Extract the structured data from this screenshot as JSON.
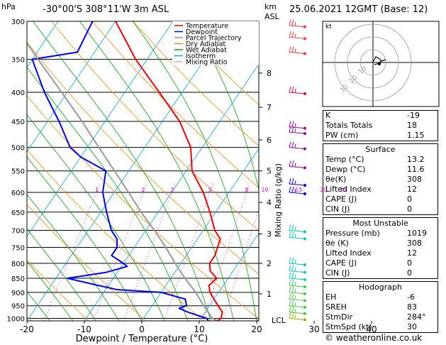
{
  "header": {
    "hpa_label": "hPa",
    "location": "-30°00'S 308°11'W 3m ASL",
    "km_label": "km",
    "asl_label": "ASL",
    "datetime": "25.06.2021 12GMT (Base: 12)"
  },
  "legend": [
    {
      "label": "Temperature",
      "color": "#ff0000"
    },
    {
      "label": "Dewpoint",
      "color": "#0000ff"
    },
    {
      "label": "Parcel Trajectory",
      "color": "#999999"
    },
    {
      "label": "Dry Adiabat",
      "color": "#ff8c00"
    },
    {
      "label": "Wet Adiabat",
      "color": "#00aa00"
    },
    {
      "label": "Isotherm",
      "color": "#00aaff"
    },
    {
      "label": "Mixing Ratio",
      "color": "#ff00ff"
    }
  ],
  "chart_data": {
    "type": "line",
    "xlabel": "Dewpoint / Temperature (°C)",
    "ylabel_right": "Mixing Ratio (g/kg)",
    "x_ticks": [
      -30,
      -20,
      -10,
      0,
      10,
      20,
      30,
      40
    ],
    "p_ticks": [
      300,
      350,
      400,
      450,
      500,
      550,
      600,
      650,
      700,
      750,
      800,
      850,
      900,
      950,
      1000
    ],
    "km_ticks": [
      {
        "km": "1",
        "p": 905
      },
      {
        "km": "2",
        "p": 800
      },
      {
        "km": "3",
        "p": 710
      },
      {
        "km": "4",
        "p": 625
      },
      {
        "km": "5",
        "p": 550
      },
      {
        "km": "6",
        "p": 485
      },
      {
        "km": "7",
        "p": 425
      },
      {
        "km": "8",
        "p": 370
      }
    ],
    "lcl_label": "LCL",
    "mixing_ratio_labels": [
      "1",
      "2",
      "3",
      "5",
      "8",
      "10",
      "15",
      "20",
      "25"
    ],
    "series": [
      {
        "name": "Temperature",
        "points": [
          [
            1010,
            13.2
          ],
          [
            1000,
            13.5
          ],
          [
            975,
            13
          ],
          [
            950,
            11.5
          ],
          [
            925,
            10
          ],
          [
            900,
            8.5
          ],
          [
            875,
            7.5
          ],
          [
            850,
            8
          ],
          [
            825,
            6
          ],
          [
            800,
            5
          ],
          [
            775,
            5
          ],
          [
            750,
            4.5
          ],
          [
            725,
            4
          ],
          [
            700,
            2
          ],
          [
            650,
            -1
          ],
          [
            600,
            -4.5
          ],
          [
            550,
            -9
          ],
          [
            500,
            -12
          ],
          [
            450,
            -17
          ],
          [
            400,
            -24
          ],
          [
            350,
            -32
          ],
          [
            300,
            -40
          ]
        ]
      },
      {
        "name": "Dewpoint",
        "points": [
          [
            1010,
            11.6
          ],
          [
            1000,
            11
          ],
          [
            975,
            7
          ],
          [
            960,
            5
          ],
          [
            950,
            6
          ],
          [
            925,
            5
          ],
          [
            900,
            0
          ],
          [
            890,
            -8
          ],
          [
            870,
            -13
          ],
          [
            850,
            -18
          ],
          [
            830,
            -12
          ],
          [
            810,
            -9
          ],
          [
            800,
            -10
          ],
          [
            775,
            -13
          ],
          [
            750,
            -13
          ],
          [
            725,
            -14
          ],
          [
            700,
            -16
          ],
          [
            650,
            -19
          ],
          [
            600,
            -22
          ],
          [
            550,
            -24
          ],
          [
            520,
            -30
          ],
          [
            500,
            -33
          ],
          [
            450,
            -38
          ],
          [
            400,
            -44
          ],
          [
            350,
            -50
          ],
          [
            340,
            -43
          ],
          [
            300,
            -44
          ]
        ]
      },
      {
        "name": "Parcel Trajectory",
        "points": [
          [
            1010,
            13.2
          ],
          [
            1000,
            12
          ],
          [
            950,
            9
          ],
          [
            900,
            6
          ],
          [
            850,
            2.5
          ],
          [
            800,
            -1
          ],
          [
            750,
            -4.5
          ],
          [
            700,
            -8.5
          ],
          [
            650,
            -13
          ],
          [
            600,
            -17.5
          ],
          [
            550,
            -22.5
          ],
          [
            500,
            -28
          ],
          [
            450,
            -34
          ],
          [
            400,
            -41
          ],
          [
            350,
            -49
          ],
          [
            300,
            -58
          ]
        ]
      }
    ]
  },
  "hodograph": {
    "unit": "kt",
    "ring_labels": [
      "10",
      "20",
      "30"
    ]
  },
  "stats": {
    "k": {
      "label": "K",
      "value": "-19"
    },
    "tt": {
      "label": "Totals Totals",
      "value": "18"
    },
    "pw": {
      "label": "PW (cm)",
      "value": "1.15"
    },
    "surface": {
      "title": "Surface",
      "rows": [
        {
          "label": "Temp (°C)",
          "value": "13.2"
        },
        {
          "label": "Dewp (°C)",
          "value": "11.6"
        },
        {
          "label": "θe(K)",
          "value": "308"
        },
        {
          "label": "Lifted Index",
          "value": "12"
        },
        {
          "label": "CAPE (J)",
          "value": "0"
        },
        {
          "label": "CIN (J)",
          "value": "0"
        }
      ]
    },
    "most_unstable": {
      "title": "Most Unstable",
      "rows": [
        {
          "label": "Pressure (mb)",
          "value": "1019"
        },
        {
          "label": "θe (K)",
          "value": "308"
        },
        {
          "label": "Lifted Index",
          "value": "12"
        },
        {
          "label": "CAPE (J)",
          "value": "0"
        },
        {
          "label": "CIN (J)",
          "value": "0"
        }
      ]
    },
    "hodograph": {
      "title": "Hodograph",
      "rows": [
        {
          "label": "EH",
          "value": "-6"
        },
        {
          "label": "SREH",
          "value": "83"
        },
        {
          "label": "StmDir",
          "value": "284°"
        },
        {
          "label": "StmSpd (kt)",
          "value": "30"
        }
      ]
    }
  },
  "footer": "© weatheronline.co.uk"
}
